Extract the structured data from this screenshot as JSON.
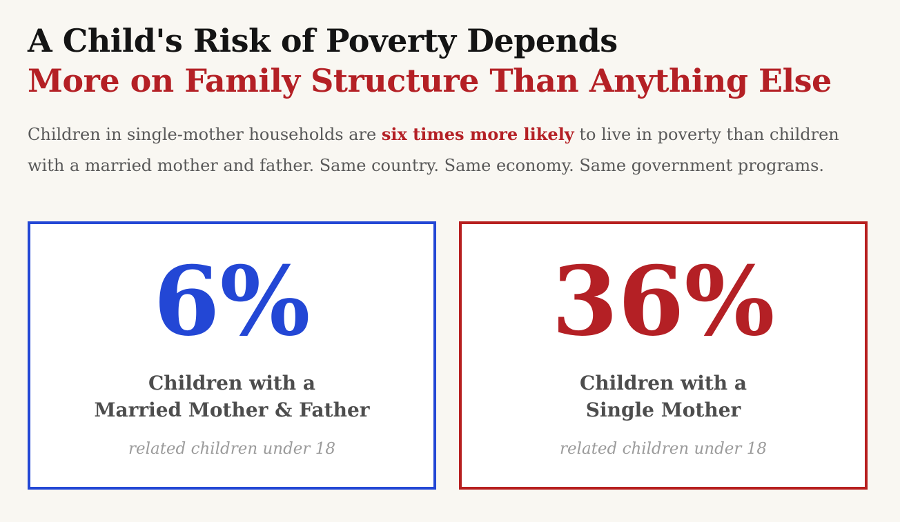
{
  "page": {
    "title_line1": "A Child's Risk of Poverty Depends",
    "title_line2": "More on Family Structure Than Anything Else",
    "intro": {
      "before_highlight": "Children in single-mother households are ",
      "highlight": "six times more likely",
      "after_highlight": " to live in poverty than children with a married mother and father. Same country. Same economy. Same government programs."
    }
  },
  "colors": {
    "page_background": "#f9f7f2",
    "card_background": "#ffffff",
    "title_black": "#141414",
    "accent_red": "#b42025",
    "accent_red_border": "#b71f1f",
    "accent_blue": "#2347d5",
    "body_gray": "#595959",
    "label_gray": "#4d4d4d",
    "caption_gray": "#9b9b9b"
  },
  "cards": [
    {
      "value": "6%",
      "label_line1": "Children with a",
      "label_line2": "Married Mother & Father",
      "caption": "related children under 18",
      "accent_color": "#2347d5"
    },
    {
      "value": "36%",
      "label_line1": "Children with a",
      "label_line2": "Single Mother",
      "caption": "related children under 18",
      "accent_color": "#b42025"
    }
  ],
  "chart_data": {
    "type": "table",
    "title": "A Child's Risk of Poverty Depends More on Family Structure Than Anything Else",
    "subtitle": "Children in single-mother households are six times more likely to live in poverty than children with a married mother and father. Same country. Same economy. Same government programs.",
    "categories": [
      "Children with a Married Mother & Father",
      "Children with a Single Mother"
    ],
    "values": [
      6,
      36
    ],
    "unit": "%",
    "note": "related children under 18",
    "highlight_ratio_text": "six times more likely"
  }
}
